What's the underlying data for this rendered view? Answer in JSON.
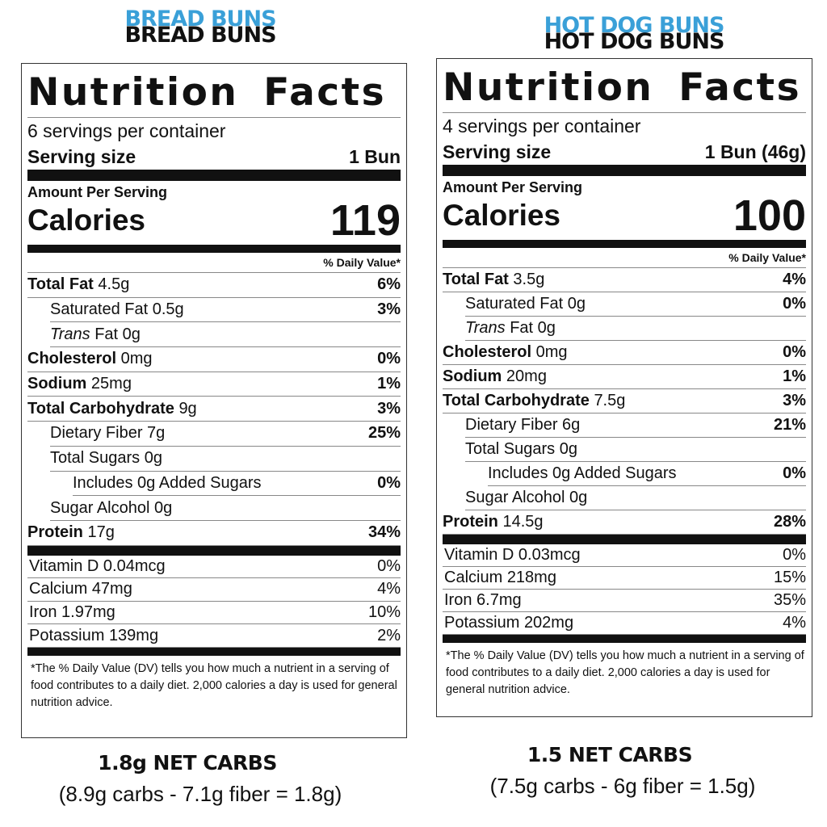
{
  "panels": [
    {
      "heading": "BREAD BUNS",
      "title": "Nutrition Facts",
      "servings": "6 servings per container",
      "serving_size_label": "Serving size",
      "serving_size": "1 Bun",
      "amount_label": "Amount Per Serving",
      "calories_label": "Calories",
      "calories": "119",
      "dv_header": "% Daily Value*",
      "nutrients": [
        {
          "name": "Total Fat",
          "amount": "4.5g",
          "dv": "6%",
          "sub": [
            {
              "name": "Saturated Fat",
              "amount": "0.5g",
              "dv": "3%"
            },
            {
              "name_italic": "Trans",
              "name": "Fat",
              "amount": "0g"
            }
          ]
        },
        {
          "name": "Cholesterol",
          "amount": "0mg",
          "dv": "0%"
        },
        {
          "name": "Sodium",
          "amount": "25mg",
          "dv": "1%"
        },
        {
          "name": "Total Carbohydrate",
          "amount": "9g",
          "dv": "3%",
          "sub": [
            {
              "name": "Dietary Fiber",
              "amount": "7g",
              "dv": "25%"
            },
            {
              "name": "Total Sugars",
              "amount": "0g",
              "sub": [
                {
                  "name": "Includes 0g Added Sugars",
                  "dv": "0%"
                }
              ]
            },
            {
              "name": "Sugar Alcohol",
              "amount": "0g"
            }
          ]
        },
        {
          "name": "Protein",
          "amount": "17g",
          "dv": "34%"
        }
      ],
      "vitamins": [
        {
          "name": "Vitamin D",
          "amount": "0.04mcg",
          "dv": "0%"
        },
        {
          "name": "Calcium",
          "amount": "47mg",
          "dv": "4%"
        },
        {
          "name": "Iron",
          "amount": "1.97mg",
          "dv": "10%"
        },
        {
          "name": "Potassium",
          "amount": "139mg",
          "dv": "2%"
        }
      ],
      "footnote": "*The % Daily Value (DV) tells you how much a nutrient in a serving of food contributes to a daily diet. 2,000 calories a day is used for general nutrition advice.",
      "net_carbs": "1.8g NET CARBS",
      "formula": "(8.9g carbs - 7.1g fiber = 1.8g)"
    },
    {
      "heading": "HOT DOG BUNS",
      "title": "Nutrition Facts",
      "servings": "4 servings per container",
      "serving_size_label": "Serving size",
      "serving_size": "1 Bun (46g)",
      "amount_label": "Amount Per Serving",
      "calories_label": "Calories",
      "calories": "100",
      "dv_header": "% Daily Value*",
      "nutrients": [
        {
          "name": "Total Fat",
          "amount": "3.5g",
          "dv": "4%",
          "sub": [
            {
              "name": "Saturated Fat",
              "amount": "0g",
              "dv": "0%"
            },
            {
              "name_italic": "Trans",
              "name": "Fat",
              "amount": "0g"
            }
          ]
        },
        {
          "name": "Cholesterol",
          "amount": "0mg",
          "dv": "0%"
        },
        {
          "name": "Sodium",
          "amount": "20mg",
          "dv": "1%"
        },
        {
          "name": "Total Carbohydrate",
          "amount": "7.5g",
          "dv": "3%",
          "sub": [
            {
              "name": "Dietary Fiber",
              "amount": "6g",
              "dv": "21%"
            },
            {
              "name": "Total Sugars",
              "amount": "0g",
              "sub": [
                {
                  "name": "Includes 0g Added Sugars",
                  "dv": "0%"
                }
              ]
            },
            {
              "name": "Sugar Alcohol",
              "amount": "0g"
            }
          ]
        },
        {
          "name": "Protein",
          "amount": "14.5g",
          "dv": "28%"
        }
      ],
      "vitamins": [
        {
          "name": "Vitamin D",
          "amount": "0.03mcg",
          "dv": "0%"
        },
        {
          "name": "Calcium",
          "amount": "218mg",
          "dv": "15%"
        },
        {
          "name": "Iron",
          "amount": "6.7mg",
          "dv": "35%"
        },
        {
          "name": "Potassium",
          "amount": "202mg",
          "dv": "4%"
        }
      ],
      "footnote": "*The % Daily Value (DV) tells you how much a nutrient in a serving of food contributes to a daily diet. 2,000 calories a day is used for general nutrition advice.",
      "net_carbs": "1.5 NET CARBS",
      "formula": "(7.5g carbs - 6g fiber = 1.5g)"
    }
  ]
}
